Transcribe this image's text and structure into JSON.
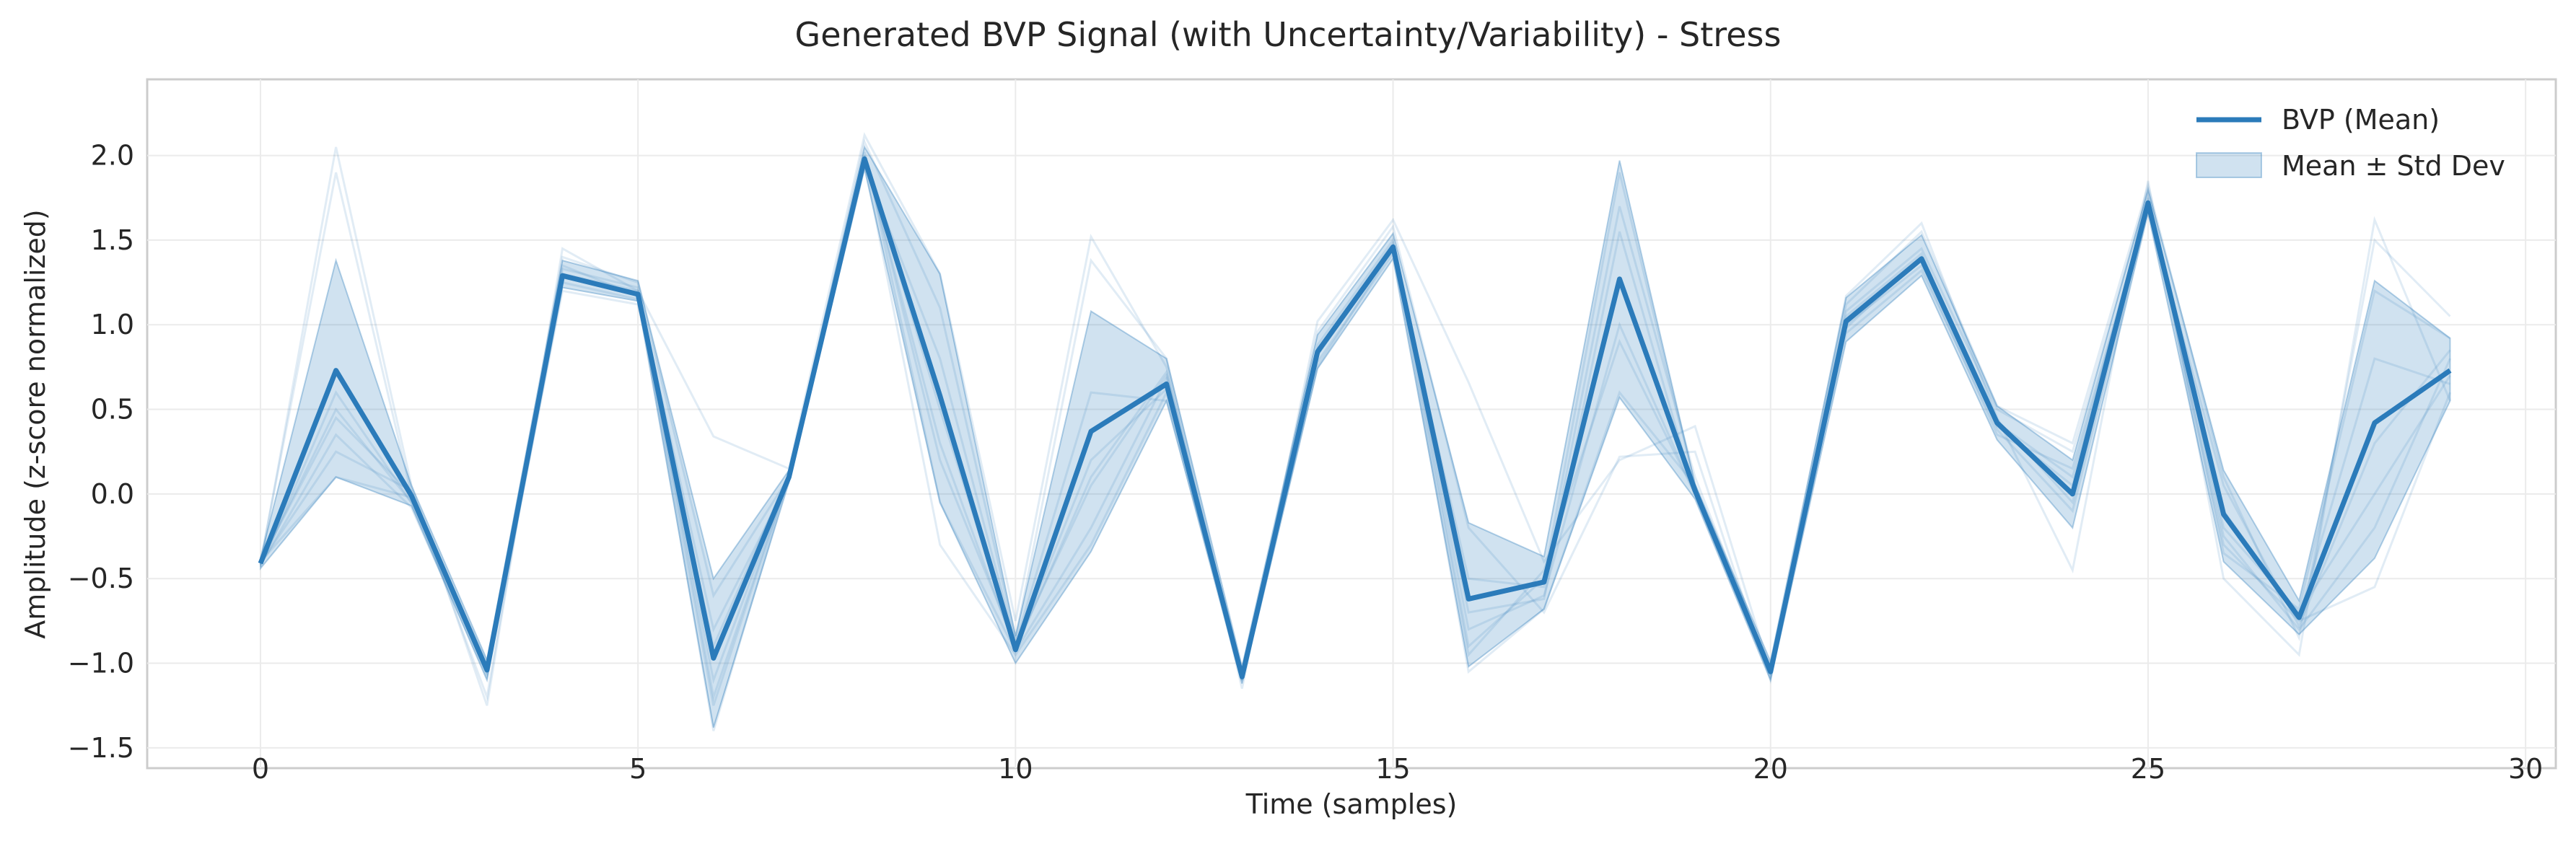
{
  "chart_data": {
    "type": "line",
    "title": "Generated BVP Signal (with Uncertainty/Variability) - Stress",
    "xlabel": "Time (samples)",
    "ylabel": "Amplitude (z-score normalized)",
    "xlim": [
      -1.5,
      30.4
    ],
    "ylim": [
      -1.62,
      2.45
    ],
    "xticks": [
      0,
      5,
      10,
      15,
      20,
      25,
      30
    ],
    "yticks": [
      -1.5,
      -1.0,
      -0.5,
      0.0,
      0.5,
      1.0,
      1.5,
      2.0
    ],
    "xtick_labels": [
      "0",
      "5",
      "10",
      "15",
      "20",
      "25",
      "30"
    ],
    "ytick_labels": [
      "−1.5",
      "−1.0",
      "−0.5",
      "0.0",
      "0.5",
      "1.0",
      "1.5",
      "2.0"
    ],
    "grid": true,
    "legend_position": "top-right",
    "x": [
      0,
      1,
      2,
      3,
      4,
      5,
      6,
      7,
      8,
      9,
      10,
      11,
      12,
      13,
      14,
      15,
      16,
      17,
      18,
      19,
      20,
      21,
      22,
      23,
      24,
      25,
      26,
      27,
      28,
      29
    ],
    "series": [
      {
        "name": "BVP (Mean)",
        "color": "#2b7bba",
        "values": [
          -0.41,
          0.73,
          -0.01,
          -1.04,
          1.29,
          1.18,
          -0.97,
          0.1,
          1.98,
          0.58,
          -0.92,
          0.37,
          0.65,
          -1.08,
          0.84,
          1.46,
          -0.62,
          -0.52,
          1.27,
          0.02,
          -1.05,
          1.02,
          1.39,
          0.42,
          0.0,
          1.72,
          -0.12,
          -0.73,
          0.42,
          0.73
        ]
      },
      {
        "name": "Mean ± Std Dev",
        "color": "#a6c8e1",
        "lower": [
          -0.44,
          0.1,
          -0.07,
          -1.1,
          1.22,
          1.14,
          -1.38,
          0.07,
          1.92,
          -0.05,
          -1.0,
          -0.34,
          0.55,
          -1.12,
          0.74,
          1.39,
          -1.02,
          -0.68,
          0.57,
          -0.03,
          -1.1,
          0.9,
          1.29,
          0.32,
          -0.2,
          1.66,
          -0.4,
          -0.83,
          -0.38,
          0.55
        ],
        "upper": [
          -0.38,
          1.38,
          0.05,
          -0.98,
          1.38,
          1.26,
          -0.5,
          0.14,
          2.05,
          1.3,
          -0.84,
          1.08,
          0.8,
          -1.02,
          0.94,
          1.54,
          -0.17,
          -0.37,
          1.97,
          0.06,
          -0.99,
          1.16,
          1.53,
          0.52,
          0.2,
          1.8,
          0.14,
          -0.63,
          1.26,
          0.92
        ]
      }
    ],
    "samples": [
      [
        -0.42,
        2.05,
        0.05,
        -1.25,
        1.45,
        1.2,
        0.34,
        0.15,
        2.12,
        1.3,
        -0.75,
        1.52,
        0.75,
        -1.15,
        1.02,
        1.62,
        0.66,
        -0.4,
        0.2,
        0.4,
        -1.05,
        1.17,
        1.6,
        0.45,
        -0.45,
        1.85,
        -0.5,
        -0.95,
        1.62,
        0.55
      ],
      [
        -0.4,
        1.9,
        0.0,
        -1.2,
        1.4,
        1.25,
        -0.6,
        0.1,
        2.08,
        1.1,
        -0.85,
        1.38,
        0.8,
        -1.1,
        0.96,
        1.58,
        -0.2,
        -0.7,
        0.22,
        0.25,
        -1.1,
        1.12,
        1.55,
        0.52,
        0.3,
        1.82,
        0.1,
        -0.85,
        1.5,
        1.05
      ],
      [
        -0.4,
        0.45,
        0.0,
        -1.05,
        1.3,
        1.2,
        -1.4,
        0.1,
        1.96,
        -0.3,
        -0.95,
        -0.3,
        0.6,
        -1.1,
        0.75,
        1.45,
        -1.05,
        -0.68,
        0.6,
        0.05,
        -1.08,
        1.0,
        1.35,
        0.35,
        0.15,
        1.7,
        -0.3,
        -0.75,
        -0.55,
        0.6
      ],
      [
        -0.41,
        0.5,
        -0.05,
        -1.02,
        1.25,
        1.15,
        -1.1,
        0.1,
        2.0,
        0.2,
        -0.9,
        0.05,
        0.7,
        -1.06,
        0.85,
        1.48,
        -0.8,
        -0.6,
        1.0,
        0.0,
        -1.02,
        1.05,
        1.42,
        0.4,
        0.05,
        1.75,
        -0.2,
        -0.7,
        0.0,
        0.7
      ],
      [
        -0.42,
        0.35,
        -0.08,
        -1.08,
        1.2,
        1.12,
        -0.9,
        0.12,
        1.94,
        0.8,
        -0.88,
        0.6,
        0.55,
        -1.09,
        0.78,
        1.42,
        -0.5,
        -0.55,
        1.7,
        0.1,
        -1.04,
        0.95,
        1.32,
        0.38,
        -0.1,
        1.68,
        0.05,
        -0.78,
        0.3,
        0.85
      ],
      [
        -0.4,
        0.1,
        -0.02,
        -1.0,
        1.28,
        1.18,
        -0.8,
        0.08,
        2.02,
        -0.05,
        -0.93,
        -0.2,
        0.68,
        -1.08,
        0.88,
        1.5,
        -0.9,
        -0.5,
        1.9,
        0.05,
        -1.06,
        1.08,
        1.45,
        0.5,
        0.25,
        1.78,
        -0.35,
        -0.68,
        1.2,
        0.92
      ],
      [
        -0.41,
        0.25,
        0.02,
        -1.03,
        1.33,
        1.22,
        -1.2,
        0.1,
        1.98,
        0.5,
        -0.91,
        0.2,
        0.62,
        -1.07,
        0.82,
        1.46,
        -0.95,
        -0.45,
        0.9,
        0.0,
        -1.05,
        1.02,
        1.38,
        0.42,
        0.1,
        1.72,
        -0.1,
        -0.72,
        0.8,
        0.65
      ],
      [
        -0.43,
        0.6,
        -0.05,
        -1.06,
        1.35,
        1.17,
        -1.25,
        0.1,
        1.99,
        0.3,
        -0.92,
        0.1,
        0.72,
        -1.07,
        0.86,
        1.44,
        -0.7,
        -0.62,
        1.55,
        0.0,
        -1.05,
        0.98,
        1.4,
        0.44,
        -0.05,
        1.73,
        -0.25,
        -0.8,
        -0.2,
        0.8
      ]
    ]
  }
}
